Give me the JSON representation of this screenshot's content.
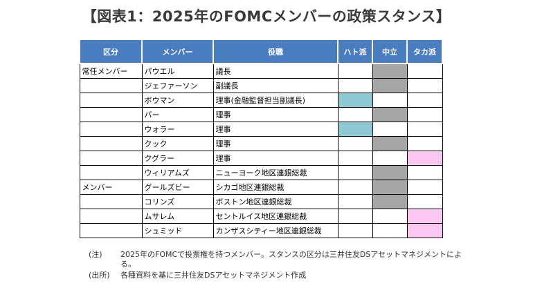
{
  "title": "【図表1：2025年のFOMCメンバーの政策スタンス】",
  "headers": {
    "category": "区分",
    "member": "メンバー",
    "position": "役職",
    "dove": "ハト派",
    "neutral": "中立",
    "hawk": "タカ派"
  },
  "groups": [
    {
      "label": "常任メンバー"
    },
    {
      "label": "メンバー"
    }
  ],
  "rows": [
    {
      "name": "パウエル",
      "role": "議長",
      "stance": "neutral"
    },
    {
      "name": "ジェファーソン",
      "role": "副議長",
      "stance": "neutral"
    },
    {
      "name": "ボウマン",
      "role": "理事(金融監督担当副議長)",
      "stance": "dove"
    },
    {
      "name": "バー",
      "role": "理事",
      "stance": "neutral"
    },
    {
      "name": "ウォラー",
      "role": "理事",
      "stance": "dove"
    },
    {
      "name": "クック",
      "role": "理事",
      "stance": "neutral"
    },
    {
      "name": "クグラー",
      "role": "理事",
      "stance": "hawk"
    },
    {
      "name": "ウィリアムズ",
      "role": "ニューヨーク地区連銀総裁",
      "stance": "neutral"
    },
    {
      "name": "グールズビー",
      "role": "シカゴ地区連銀総裁",
      "stance": "neutral"
    },
    {
      "name": "コリンズ",
      "role": "ボストン地区連銀総裁",
      "stance": "neutral"
    },
    {
      "name": "ムサレム",
      "role": "セントルイス地区連銀総裁",
      "stance": "hawk"
    },
    {
      "name": "シュミッド",
      "role": "カンザスシティー地区連銀総裁",
      "stance": "hawk"
    }
  ],
  "colors": {
    "header_bg": "#4a7cc0",
    "dove": "#8ec9d3",
    "neutral": "#a6a6a6",
    "hawk": "#f9c7ef"
  },
  "notes": [
    {
      "label": "(注)",
      "text": "2025年のFOMCで投票権を持つメンバー。スタンスの区分は三井住友DSアセットマネジメントによる。"
    },
    {
      "label": "(出所)",
      "text": "各種資料を基に三井住友DSアセットマネジメント作成"
    }
  ]
}
